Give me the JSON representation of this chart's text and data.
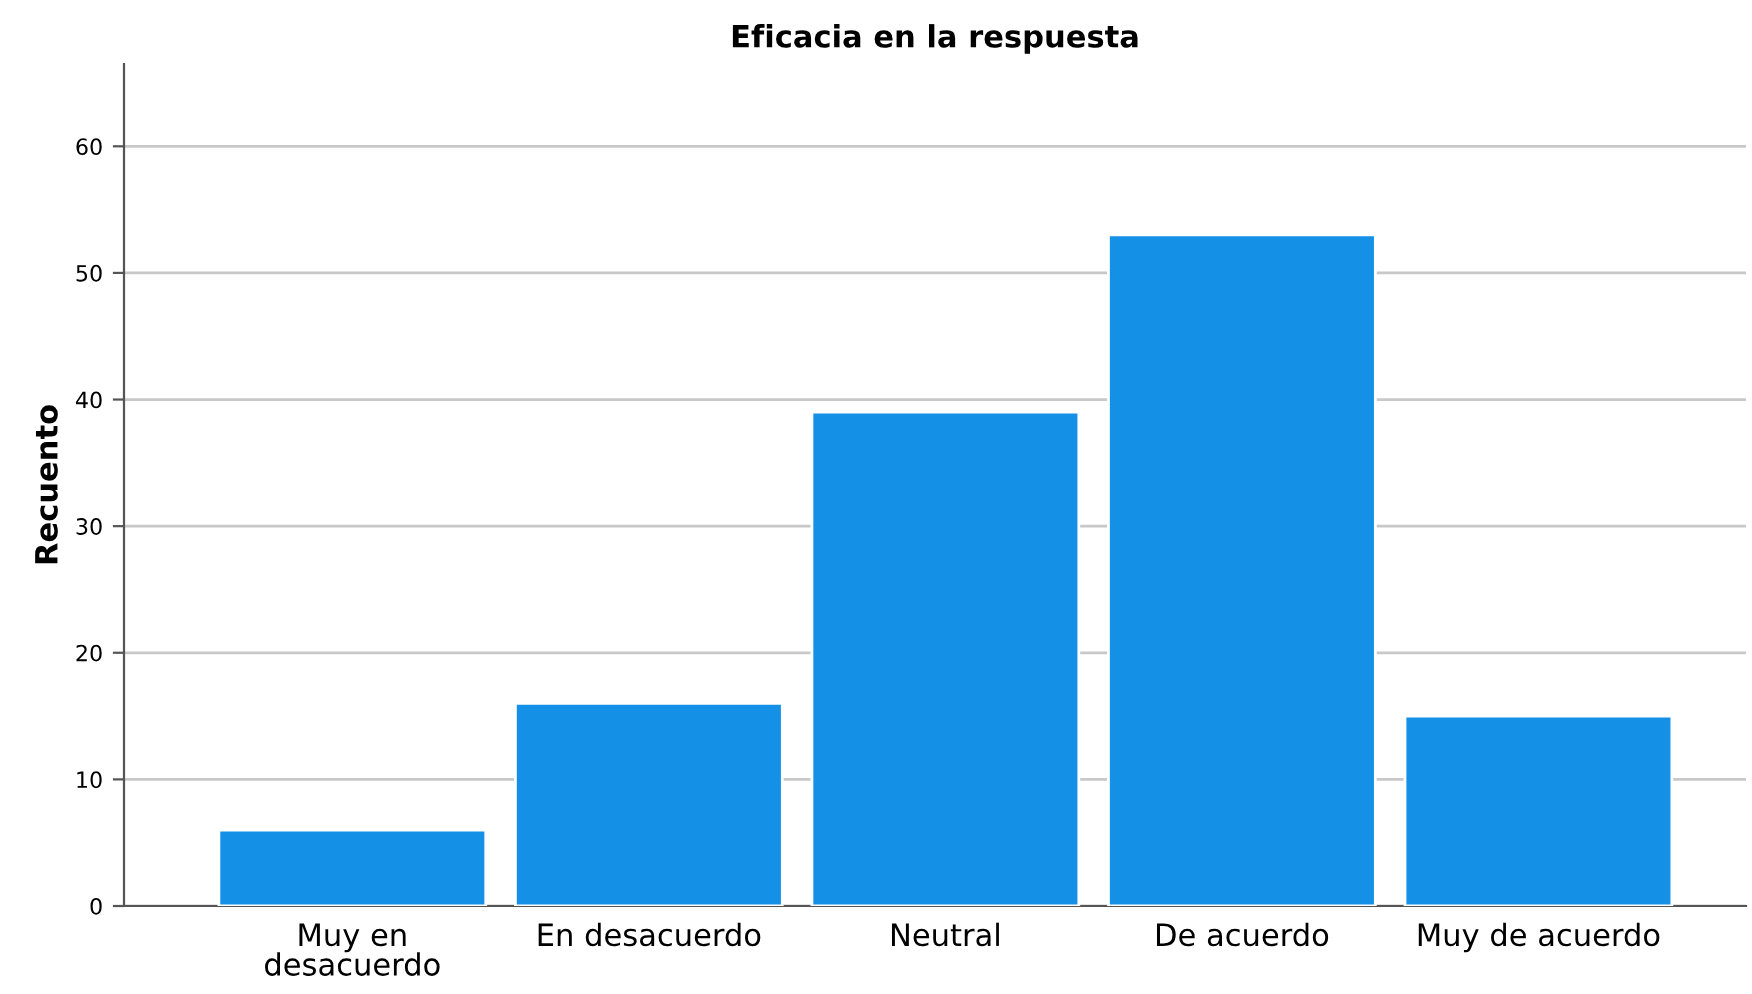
{
  "chart_data": {
    "type": "bar",
    "title": "Eficacia en la respuesta",
    "ylabel": "Recuento",
    "categories": [
      "Muy en\ndesacuerdo",
      "En desacuerdo",
      "Neutral",
      "De acuerdo",
      "Muy de acuerdo"
    ],
    "values": [
      6,
      16,
      39,
      53,
      15
    ],
    "color": "#1491e6",
    "ylim": [
      0,
      66.5
    ],
    "yticks": [
      0,
      10,
      20,
      30,
      40,
      50,
      60
    ],
    "grid": "y"
  }
}
